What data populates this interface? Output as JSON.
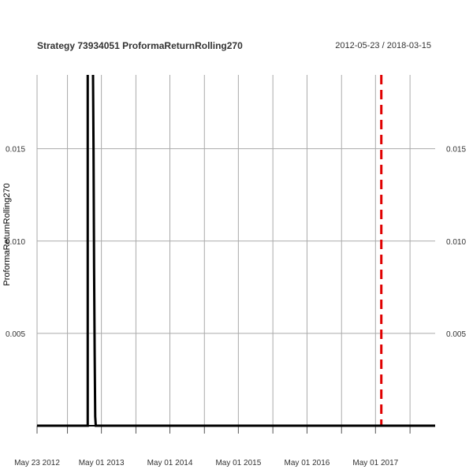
{
  "header": {
    "title": "Strategy 73934051 ProformaReturnRolling270",
    "date_range": "2012-05-23 / 2018-03-15"
  },
  "chart_data": {
    "type": "line",
    "title": "Strategy 73934051 ProformaReturnRolling270",
    "xlabel": "",
    "ylabel": "ProformaReturnRolling270",
    "x_range": [
      "2012-05-23",
      "2018-03-15"
    ],
    "ylim": [
      0.0,
      0.019
    ],
    "grid": true,
    "legend": "none",
    "x_ticks": [
      {
        "date": "2012-05-23",
        "label": "May 23 2012"
      },
      {
        "date": "2012-11-01",
        "label": ""
      },
      {
        "date": "2013-05-01",
        "label": "May 01 2013"
      },
      {
        "date": "2013-11-01",
        "label": ""
      },
      {
        "date": "2014-05-01",
        "label": "May 01 2014"
      },
      {
        "date": "2014-11-01",
        "label": ""
      },
      {
        "date": "2015-05-01",
        "label": "May 01 2015"
      },
      {
        "date": "2015-11-01",
        "label": ""
      },
      {
        "date": "2016-05-01",
        "label": "May 01 2016"
      },
      {
        "date": "2016-11-01",
        "label": ""
      },
      {
        "date": "2017-05-01",
        "label": "May 01 2017"
      },
      {
        "date": "2017-11-01",
        "label": ""
      }
    ],
    "y_ticks": [
      {
        "value": 0.005,
        "label": "0.005"
      },
      {
        "value": 0.01,
        "label": "0.010"
      },
      {
        "value": 0.015,
        "label": "0.015"
      }
    ],
    "series": [
      {
        "color": "#000000",
        "x": [
          "2012-05-23",
          "2013-02-17",
          "2013-02-17",
          "2013-03-17",
          "2013-03-20",
          "2013-03-23",
          "2013-03-26",
          "2013-03-29",
          "2013-04-01",
          "2013-04-04",
          "2018-03-15"
        ],
        "y": [
          0.0,
          0.0,
          0.0195,
          0.0195,
          0.015,
          0.0085,
          0.004,
          0.0005,
          0.0,
          0.0,
          0.0
        ]
      }
    ],
    "vlines": [
      {
        "date": "2017-06-01",
        "color": "#e00000",
        "style": "dashed"
      }
    ]
  }
}
